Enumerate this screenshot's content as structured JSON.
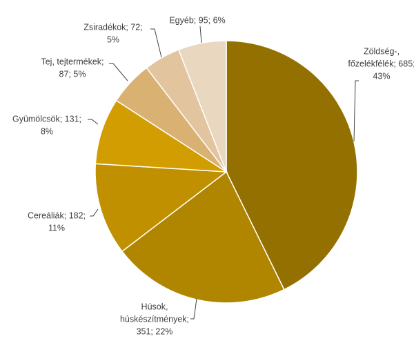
{
  "chart_data": {
    "type": "pie",
    "values": [
      685,
      351,
      182,
      131,
      87,
      72,
      95
    ],
    "value_labels": [
      [
        "Zöldség-,",
        "főzelékfélék; 685;",
        "43%"
      ],
      [
        "Húsok,",
        "húskészítmények;",
        "351; 22%"
      ],
      [
        "Cereáliák; 182;",
        "11%"
      ],
      [
        "Gyümölcsök; 131;",
        "8%"
      ],
      [
        "Tej, tejtermékek;",
        "87; 5%"
      ],
      [
        "Zsiradékok; 72;",
        "5%"
      ],
      [
        "Egyéb; 95; 6%"
      ]
    ],
    "colors": [
      "#947000",
      "#B08500",
      "#C09000",
      "#D19D00",
      "#D9B273",
      "#E2C49E",
      "#EAD7C0"
    ]
  }
}
